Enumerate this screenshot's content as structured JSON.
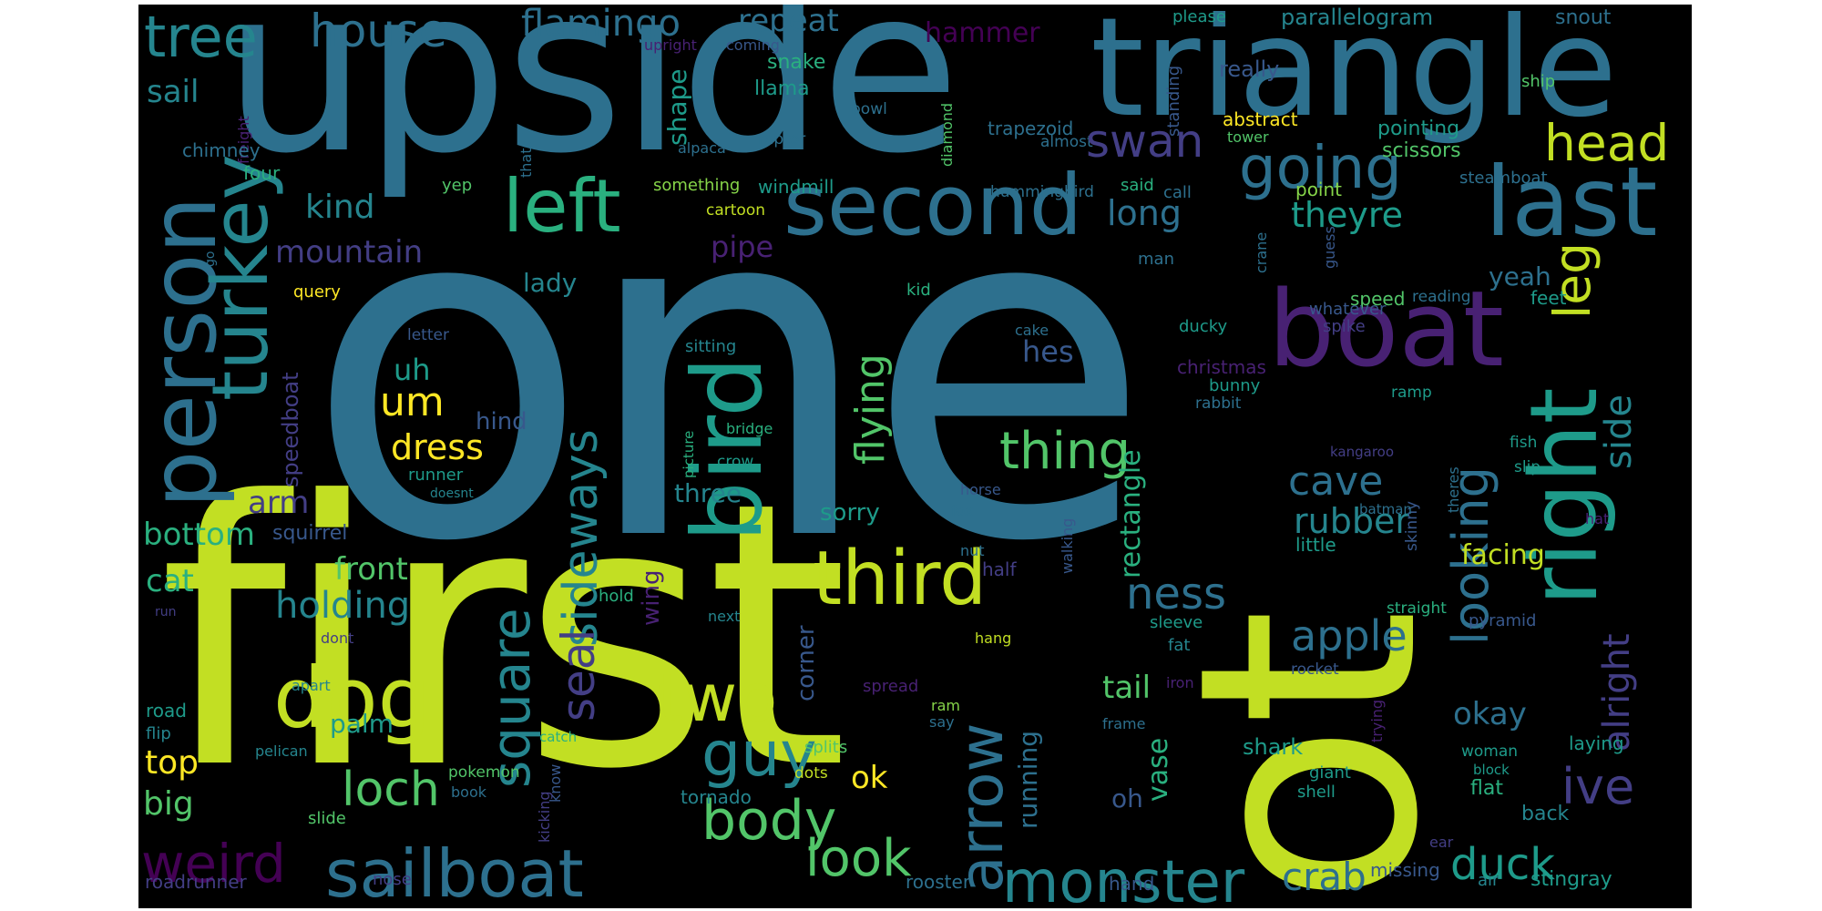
{
  "colors": {
    "c0": "#440154",
    "c1": "#482173",
    "c2": "#433e85",
    "c3": "#38588c",
    "c4": "#2d708e",
    "c5": "#25858e",
    "c6": "#1e9b8a",
    "c7": "#2ab07f",
    "c8": "#52c569",
    "c9": "#86d549",
    "c10": "#c2df23",
    "c11": "#fde725"
  },
  "words": [
    {
      "text": "one",
      "c": 4
    },
    {
      "text": "first",
      "c": 10
    },
    {
      "text": "upside",
      "c": 4
    },
    {
      "text": "triangle",
      "c": 4
    },
    {
      "text": "ot",
      "c": 10
    },
    {
      "text": "boat",
      "c": 1
    },
    {
      "text": "second",
      "c": 4
    },
    {
      "text": "last",
      "c": 4
    },
    {
      "text": "left",
      "c": 7
    },
    {
      "text": "person",
      "c": 4
    },
    {
      "text": "turkey",
      "c": 5
    },
    {
      "text": "bird",
      "c": 6
    },
    {
      "text": "right",
      "c": 6
    },
    {
      "text": "dog",
      "c": 10
    },
    {
      "text": "third",
      "c": 10
    },
    {
      "text": "two",
      "c": 10
    },
    {
      "text": "sailboat",
      "c": 4
    },
    {
      "text": "monster",
      "c": 5
    },
    {
      "text": "going",
      "c": 4
    },
    {
      "text": "head",
      "c": 10
    },
    {
      "text": "leg",
      "c": 10
    },
    {
      "text": "thing",
      "c": 8
    },
    {
      "text": "sideways",
      "c": 5
    },
    {
      "text": "square",
      "c": 5
    },
    {
      "text": "guy",
      "c": 5
    },
    {
      "text": "arrow",
      "c": 4
    },
    {
      "text": "body",
      "c": 8
    },
    {
      "text": "loch",
      "c": 8
    },
    {
      "text": "weird",
      "c": 0
    },
    {
      "text": "look",
      "c": 8
    },
    {
      "text": "looking",
      "c": 4
    },
    {
      "text": "ive",
      "c": 2
    },
    {
      "text": "duck",
      "c": 6
    },
    {
      "text": "crab",
      "c": 4
    },
    {
      "text": "apple",
      "c": 4
    },
    {
      "text": "ness",
      "c": 4
    },
    {
      "text": "seal",
      "c": 2
    },
    {
      "text": "cave",
      "c": 4
    },
    {
      "text": "rubber",
      "c": 5
    },
    {
      "text": "alright",
      "c": 2
    },
    {
      "text": "side",
      "c": 5
    },
    {
      "text": "flying",
      "c": 8
    },
    {
      "text": "tree",
      "c": 5
    },
    {
      "text": "house",
      "c": 4
    },
    {
      "text": "flamingo",
      "c": 4
    },
    {
      "text": "repeat",
      "c": 4
    },
    {
      "text": "hammer",
      "c": 0
    },
    {
      "text": "parallelogram",
      "c": 5
    },
    {
      "text": "snout",
      "c": 4
    },
    {
      "text": "really",
      "c": 3
    },
    {
      "text": "please",
      "c": 6
    },
    {
      "text": "standing",
      "c": 3
    },
    {
      "text": "abstract",
      "c": 11
    },
    {
      "text": "pointing",
      "c": 6
    },
    {
      "text": "tower",
      "c": 8
    },
    {
      "text": "scissors",
      "c": 8
    },
    {
      "text": "point",
      "c": 9
    },
    {
      "text": "ship",
      "c": 8
    },
    {
      "text": "steamboat",
      "c": 4
    },
    {
      "text": "call",
      "c": 4
    },
    {
      "text": "said",
      "c": 7
    },
    {
      "text": "hummingbird",
      "c": 4
    },
    {
      "text": "almost",
      "c": 4
    },
    {
      "text": "trapezoid",
      "c": 4
    },
    {
      "text": "diamond",
      "c": 8
    },
    {
      "text": "bowl",
      "c": 4
    },
    {
      "text": "raptor",
      "c": 4
    },
    {
      "text": "llama",
      "c": 6
    },
    {
      "text": "snake",
      "c": 7
    },
    {
      "text": "coming",
      "c": 3
    },
    {
      "text": "upright",
      "c": 1
    },
    {
      "text": "freight",
      "c": 1
    },
    {
      "text": "shape",
      "c": 6
    },
    {
      "text": "alpaca",
      "c": 4
    },
    {
      "text": "windmill",
      "c": 6
    },
    {
      "text": "something",
      "c": 9
    },
    {
      "text": "thats",
      "c": 4
    },
    {
      "text": "chimney",
      "c": 4
    },
    {
      "text": "sail",
      "c": 5
    },
    {
      "text": "four",
      "c": 7
    },
    {
      "text": "yep",
      "c": 8
    },
    {
      "text": "cartoon",
      "c": 10
    },
    {
      "text": "kind",
      "c": 5
    },
    {
      "text": "mountain",
      "c": 2
    },
    {
      "text": "pipe",
      "c": 1
    },
    {
      "text": "swan",
      "c": 2
    },
    {
      "text": "long",
      "c": 4
    },
    {
      "text": "theyre",
      "c": 6
    },
    {
      "text": "yeah",
      "c": 4
    },
    {
      "text": "feet",
      "c": 6
    },
    {
      "text": "guess",
      "c": 3
    },
    {
      "text": "man",
      "c": 4
    },
    {
      "text": "crane",
      "c": 4
    },
    {
      "text": "speed",
      "c": 8
    },
    {
      "text": "reading",
      "c": 4
    },
    {
      "text": "whatever",
      "c": 3
    },
    {
      "text": "kid",
      "c": 7
    },
    {
      "text": "query",
      "c": 11
    },
    {
      "text": "lady",
      "c": 5
    },
    {
      "text": "letter",
      "c": 3
    },
    {
      "text": "uh",
      "c": 6
    },
    {
      "text": "um",
      "c": 11
    },
    {
      "text": "hind",
      "c": 3
    },
    {
      "text": "dress",
      "c": 11
    },
    {
      "text": "speedboat",
      "c": 2
    },
    {
      "text": "arm",
      "c": 2
    },
    {
      "text": "bottom",
      "c": 7
    },
    {
      "text": "squirrel",
      "c": 3
    },
    {
      "text": "cat",
      "c": 7
    },
    {
      "text": "front",
      "c": 8
    },
    {
      "text": "holding",
      "c": 5
    },
    {
      "text": "palm",
      "c": 6
    },
    {
      "text": "top",
      "c": 11
    },
    {
      "text": "big",
      "c": 8
    },
    {
      "text": "ok",
      "c": 11
    },
    {
      "text": "okay",
      "c": 4
    },
    {
      "text": "facing",
      "c": 10
    },
    {
      "text": "tail",
      "c": 8
    },
    {
      "text": "hes",
      "c": 3
    },
    {
      "text": "rectangle",
      "c": 7
    },
    {
      "text": "vase",
      "c": 7
    },
    {
      "text": "oh",
      "c": 3
    },
    {
      "text": "running",
      "c": 4
    },
    {
      "text": "shark",
      "c": 6
    },
    {
      "text": "giant",
      "c": 6
    },
    {
      "text": "shell",
      "c": 6
    },
    {
      "text": "flat",
      "c": 7
    },
    {
      "text": "back",
      "c": 5
    },
    {
      "text": "laying",
      "c": 6
    },
    {
      "text": "missing",
      "c": 3
    },
    {
      "text": "stingray",
      "c": 6
    },
    {
      "text": "air",
      "c": 5
    },
    {
      "text": "hand",
      "c": 3
    },
    {
      "text": "rooster",
      "c": 4
    },
    {
      "text": "nose",
      "c": 2
    },
    {
      "text": "roadrunner",
      "c": 2
    },
    {
      "text": "kicking",
      "c": 2
    },
    {
      "text": "tornado",
      "c": 5
    },
    {
      "text": "pokemon",
      "c": 8
    },
    {
      "text": "book",
      "c": 4
    },
    {
      "text": "slide",
      "c": 8
    },
    {
      "text": "know",
      "c": 3
    },
    {
      "text": "dots",
      "c": 10
    },
    {
      "text": "splits",
      "c": 8
    },
    {
      "text": "pelican",
      "c": 5
    },
    {
      "text": "catch",
      "c": 7
    },
    {
      "text": "flip",
      "c": 5
    },
    {
      "text": "road",
      "c": 6
    },
    {
      "text": "apart",
      "c": 5
    },
    {
      "text": "dont",
      "c": 2
    },
    {
      "text": "next",
      "c": 5
    },
    {
      "text": "hold",
      "c": 7
    },
    {
      "text": "wing",
      "c": 1
    },
    {
      "text": "corner",
      "c": 3
    },
    {
      "text": "half",
      "c": 2
    },
    {
      "text": "nut",
      "c": 4
    },
    {
      "text": "walking",
      "c": 3
    },
    {
      "text": "sleeve",
      "c": 6
    },
    {
      "text": "fat",
      "c": 5
    },
    {
      "text": "iron",
      "c": 1
    },
    {
      "text": "frame",
      "c": 4
    },
    {
      "text": "ram",
      "c": 9
    },
    {
      "text": "say",
      "c": 4
    },
    {
      "text": "spread",
      "c": 1
    },
    {
      "text": "rocket",
      "c": 3
    },
    {
      "text": "trying",
      "c": 1
    },
    {
      "text": "pyramid",
      "c": 3
    },
    {
      "text": "straight",
      "c": 7
    },
    {
      "text": "skinny",
      "c": 3
    },
    {
      "text": "theres",
      "c": 4
    },
    {
      "text": "hat",
      "c": 1
    },
    {
      "text": "slip",
      "c": 6
    },
    {
      "text": "fish",
      "c": 6
    },
    {
      "text": "kangaroo",
      "c": 2
    },
    {
      "text": "batman",
      "c": 4
    },
    {
      "text": "little",
      "c": 6
    },
    {
      "text": "fox",
      "c": 4
    },
    {
      "text": "horse",
      "c": 3
    },
    {
      "text": "sorry",
      "c": 6
    },
    {
      "text": "three",
      "c": 5
    },
    {
      "text": "crow",
      "c": 6
    },
    {
      "text": "picture",
      "c": 7
    },
    {
      "text": "bridge",
      "c": 7
    },
    {
      "text": "sitting",
      "c": 5
    },
    {
      "text": "runner",
      "c": 6
    },
    {
      "text": "doesnt",
      "c": 5
    },
    {
      "text": "christmas",
      "c": 1
    },
    {
      "text": "bunny",
      "c": 6
    },
    {
      "text": "rabbit",
      "c": 4
    },
    {
      "text": "ramp",
      "c": 6
    },
    {
      "text": "cake",
      "c": 4
    },
    {
      "text": "ducky",
      "c": 6
    },
    {
      "text": "spike",
      "c": 2
    },
    {
      "text": "woman",
      "c": 6
    },
    {
      "text": "block",
      "c": 6
    },
    {
      "text": "run",
      "c": 2
    },
    {
      "text": "go",
      "c": 4
    },
    {
      "text": "ear",
      "c": 2
    },
    {
      "text": "hang",
      "c": 10
    },
    {
      "text": "bowling",
      "c": 5
    }
  ]
}
